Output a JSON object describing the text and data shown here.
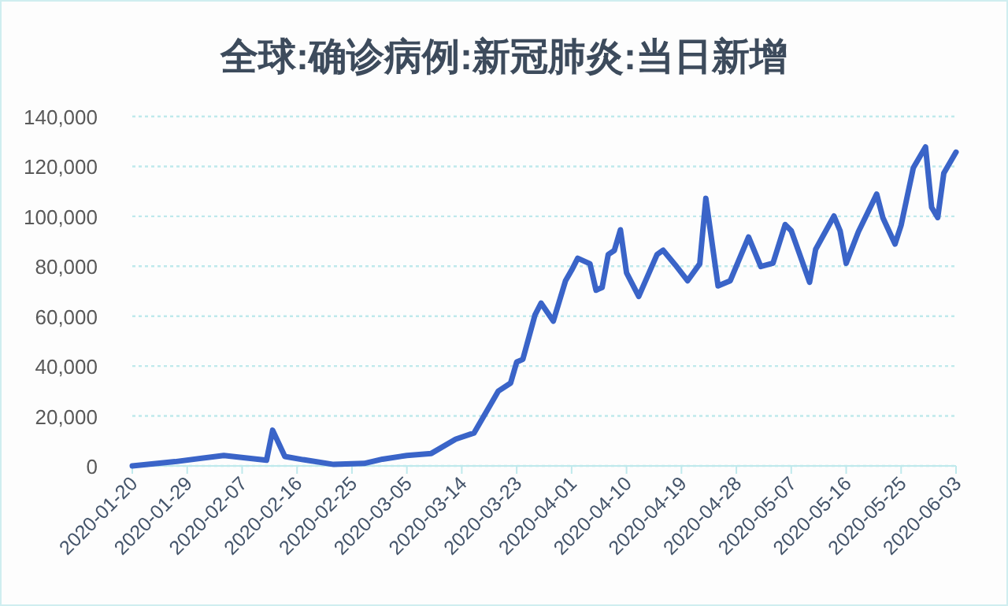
{
  "chart_data": {
    "type": "line",
    "title": "全球:确诊病例:新冠肺炎:当日新增",
    "x": [
      "2020-01-20",
      "2020-01-27",
      "2020-02-04",
      "2020-02-11",
      "2020-02-12",
      "2020-02-14",
      "2020-02-17",
      "2020-02-22",
      "2020-02-27",
      "2020-03-01",
      "2020-03-05",
      "2020-03-09",
      "2020-03-13",
      "2020-03-16",
      "2020-03-20",
      "2020-03-22",
      "2020-03-23",
      "2020-03-24",
      "2020-03-26",
      "2020-03-27",
      "2020-03-29",
      "2020-03-31",
      "2020-04-01",
      "2020-04-02",
      "2020-04-04",
      "2020-04-05",
      "2020-04-06",
      "2020-04-07",
      "2020-04-08",
      "2020-04-09",
      "2020-04-10",
      "2020-04-12",
      "2020-04-15",
      "2020-04-16",
      "2020-04-18",
      "2020-04-20",
      "2020-04-22",
      "2020-04-23",
      "2020-04-25",
      "2020-04-27",
      "2020-04-30",
      "2020-05-02",
      "2020-05-04",
      "2020-05-06",
      "2020-05-07",
      "2020-05-10",
      "2020-05-11",
      "2020-05-14",
      "2020-05-15",
      "2020-05-16",
      "2020-05-18",
      "2020-05-21",
      "2020-05-22",
      "2020-05-24",
      "2020-05-25",
      "2020-05-27",
      "2020-05-29",
      "2020-05-30",
      "2020-05-31",
      "2020-06-01",
      "2020-06-03"
    ],
    "values": [
      0,
      1700,
      4200,
      2300,
      14300,
      3800,
      2500,
      600,
      1000,
      2700,
      4200,
      5000,
      10700,
      13200,
      30000,
      33200,
      41600,
      42700,
      60500,
      65200,
      58000,
      74200,
      78400,
      83200,
      81000,
      70400,
      71500,
      84700,
      86300,
      94600,
      77400,
      67900,
      84700,
      86400,
      80500,
      74200,
      81000,
      107200,
      72100,
      74200,
      91700,
      79900,
      81200,
      96700,
      94200,
      73600,
      86800,
      100100,
      94200,
      81200,
      93800,
      108900,
      99500,
      88900,
      96400,
      119400,
      127800,
      103600,
      99500,
      117300,
      125700
    ],
    "color": "#3a64c8",
    "xlim": [
      "2020-01-20",
      "2020-06-03"
    ],
    "xticks": [
      "2020-01-20",
      "2020-01-29",
      "2020-02-07",
      "2020-02-16",
      "2020-02-25",
      "2020-03-05",
      "2020-03-14",
      "2020-03-23",
      "2020-04-01",
      "2020-04-10",
      "2020-04-19",
      "2020-04-28",
      "2020-05-07",
      "2020-05-16",
      "2020-05-25",
      "2020-06-03"
    ],
    "ylim": [
      0,
      140000
    ],
    "yticks": [
      0,
      {
        "value": 20000,
        "label": "20,000"
      },
      {
        "value": 40000,
        "label": "40,000"
      },
      {
        "value": 60000,
        "label": "60,000"
      },
      {
        "value": 80000,
        "label": "80,000"
      },
      {
        "value": 100000,
        "label": "100,000"
      },
      {
        "value": 120000,
        "label": "120,000"
      },
      {
        "value": 140000,
        "label": "140,000"
      }
    ],
    "grid": "y",
    "line_style": "solid"
  }
}
